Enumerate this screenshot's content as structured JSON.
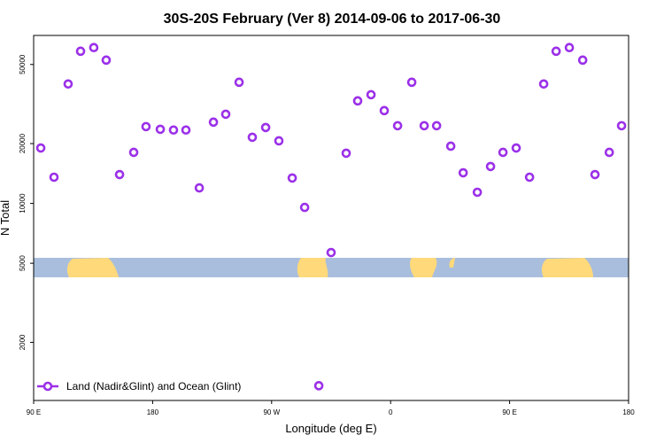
{
  "chart_data": {
    "type": "scatter",
    "title": "30S-20S February (Ver 8)   2014-09-06 to 2017-06-30",
    "x_label": "Longitude (deg E)",
    "y_label": "N Total",
    "log_y": true,
    "xlim": [
      90,
      540
    ],
    "ylim": [
      1020,
      70000
    ],
    "xticks": [
      {
        "value": 90,
        "label": "90 E"
      },
      {
        "value": 180,
        "label": "180"
      },
      {
        "value": 270,
        "label": "90 W"
      },
      {
        "value": 360,
        "label": "0"
      },
      {
        "value": 450,
        "label": "90 E"
      },
      {
        "value": 540,
        "label": "180"
      }
    ],
    "yticks": [
      2000,
      5000,
      10000,
      20000,
      50000
    ],
    "legend_position": "bottom-left",
    "series": [
      {
        "name": "Land (Nadir&Glint) and Ocean (Glint)",
        "color": "#9b30e8",
        "x": [
          95.4,
          105.4,
          116.1,
          125.5,
          135.5,
          144.9,
          155,
          165.7,
          175,
          185.8,
          195.8,
          205.2,
          215.3,
          226,
          235.3,
          245.4,
          255.4,
          265.5,
          275.5,
          285.6,
          295,
          305.7,
          315,
          326.4,
          335.1,
          345.2,
          355.2,
          365.3,
          376,
          385.4,
          394.8,
          405.5,
          414.9,
          425.6,
          435.6,
          445,
          455,
          465.1,
          475.8,
          485.2,
          495.2,
          505.3,
          514.6,
          525.4,
          534.7
        ],
        "values": [
          19000,
          13550,
          39900,
          58300,
          60800,
          52600,
          13970,
          18070,
          24350,
          23600,
          23400,
          23400,
          11970,
          25640,
          28100,
          40700,
          21520,
          24100,
          20650,
          13420,
          9550,
          1210,
          5660,
          17890,
          32800,
          35240,
          29300,
          24600,
          40700,
          24600,
          24600,
          19410,
          14260,
          11380,
          15340,
          18070,
          19000,
          13550,
          39900,
          58300,
          60800,
          52600,
          13970,
          18070,
          24600
        ]
      }
    ]
  }
}
